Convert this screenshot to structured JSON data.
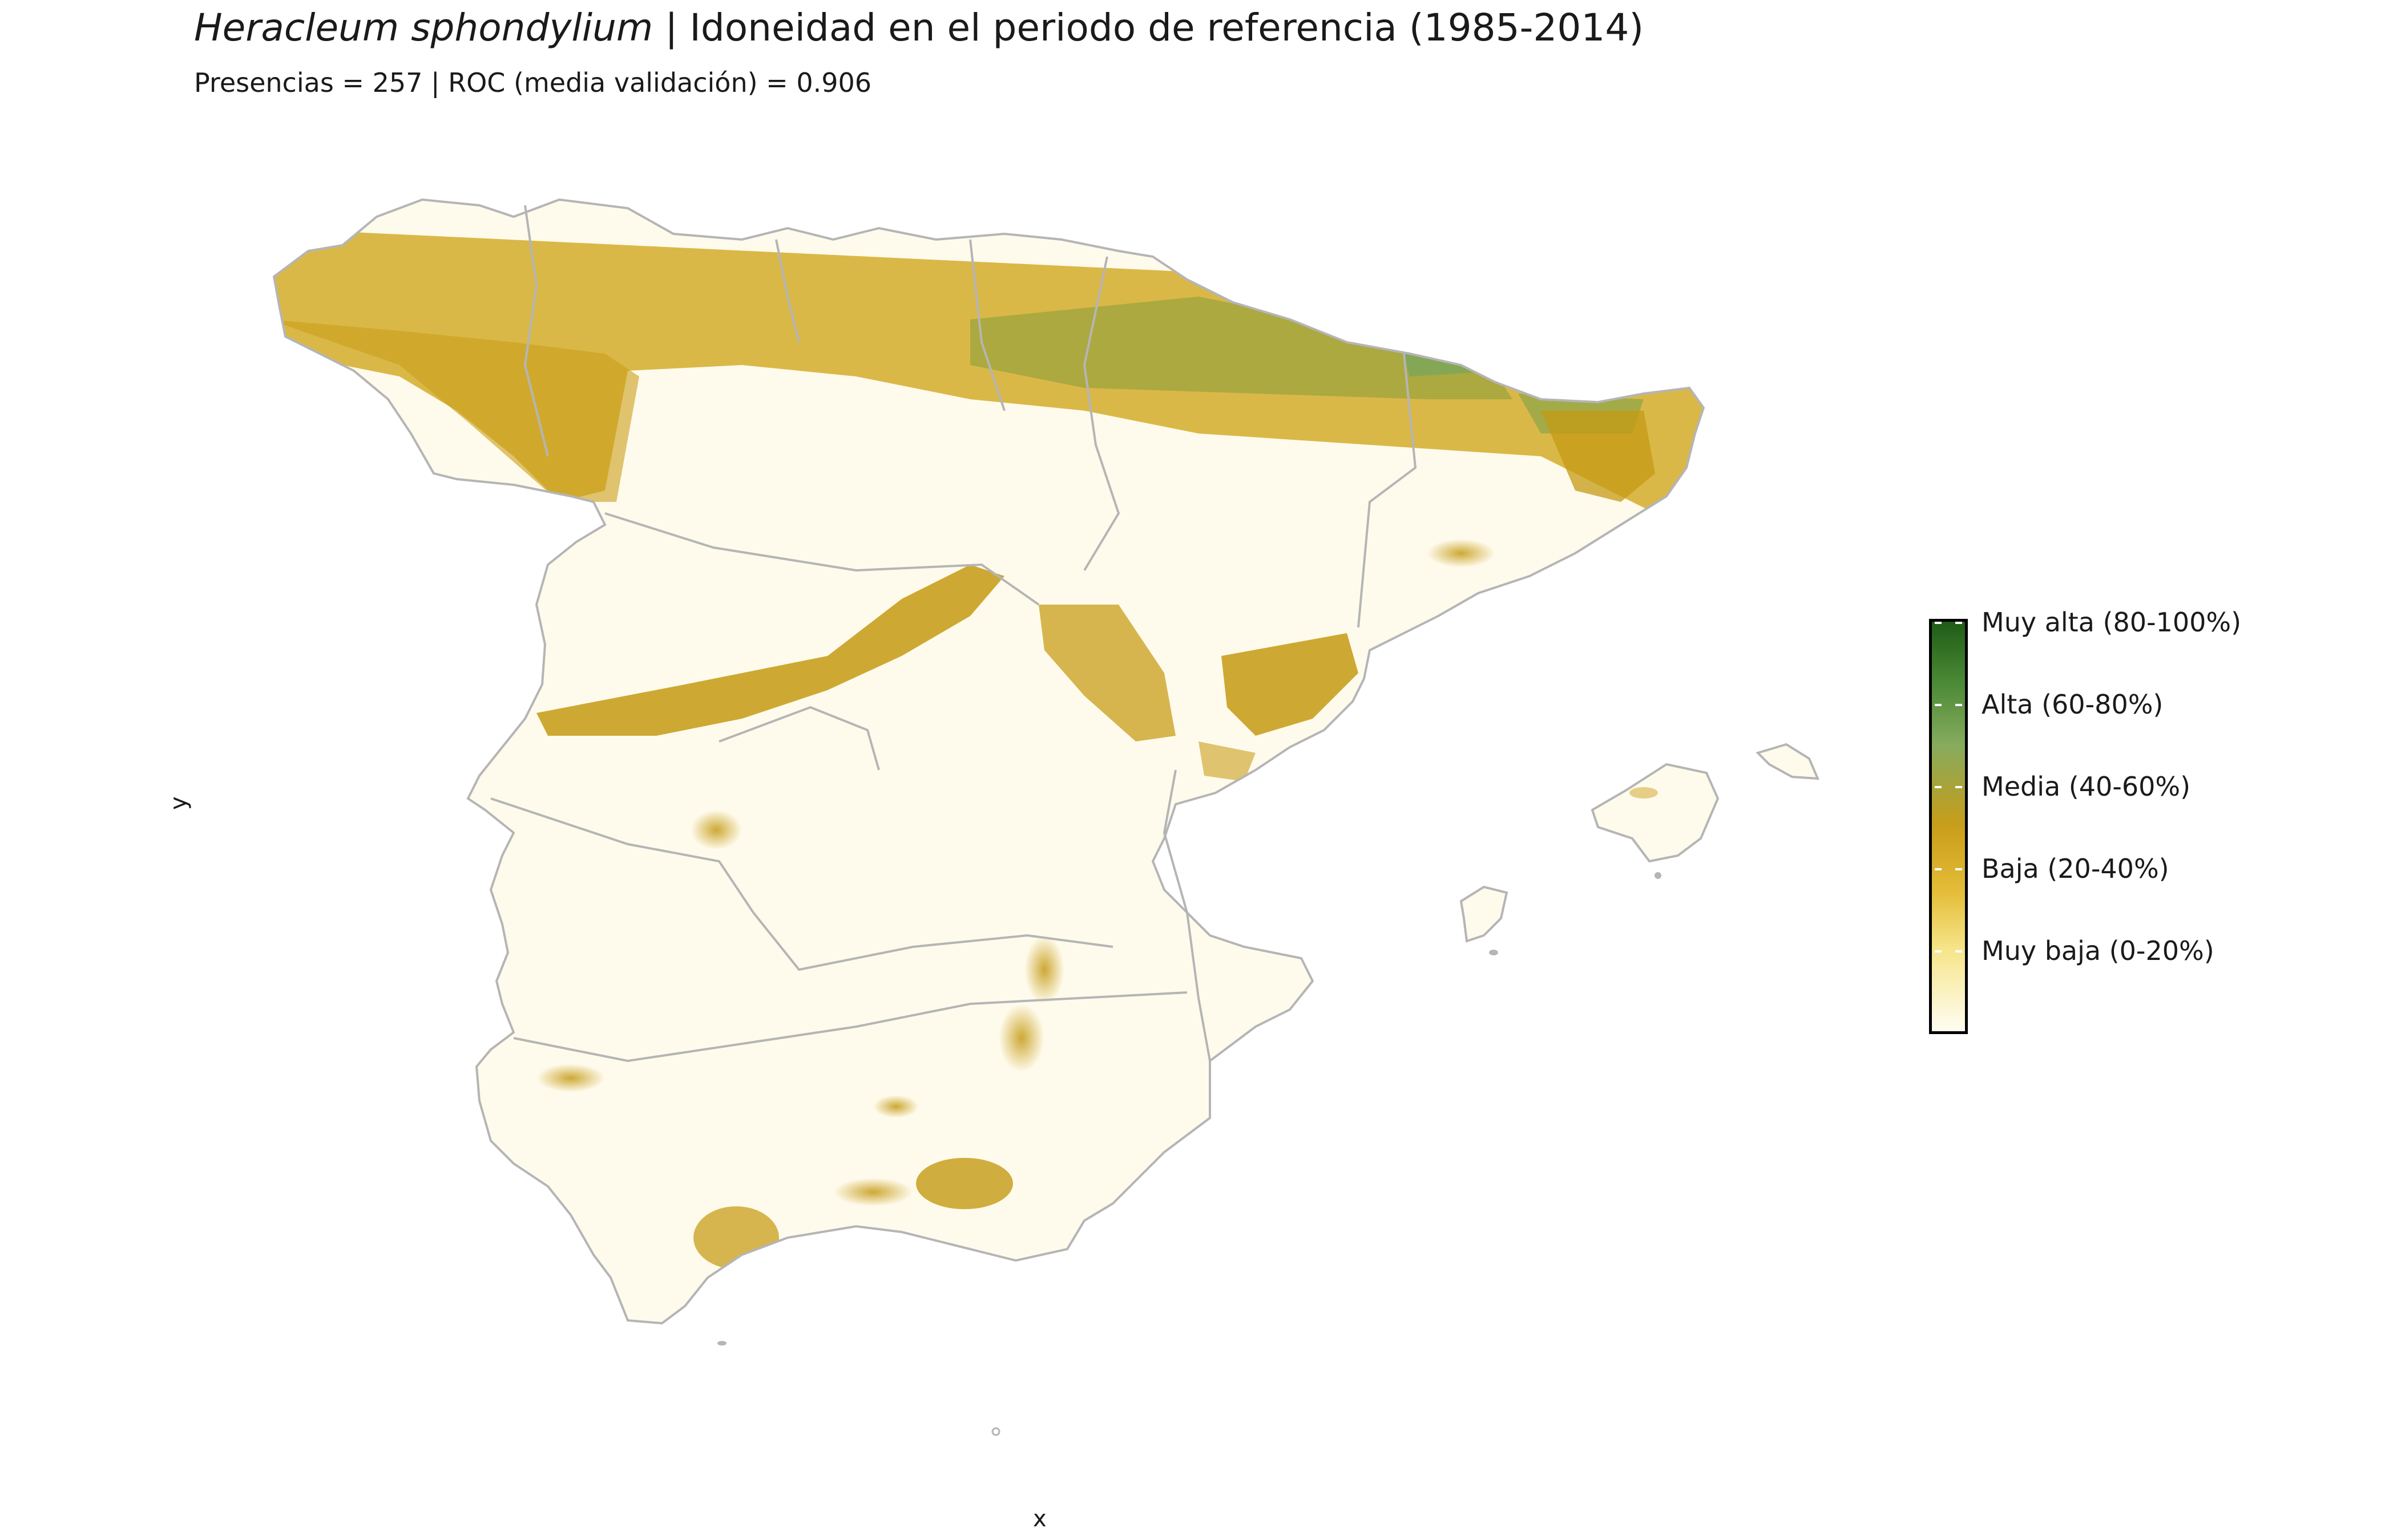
{
  "title": {
    "species": "Heracleum sphondylium",
    "text": " | Idoneidad en el periodo de referencia (1985-2014)"
  },
  "subtitle": "Presencias = 257  |  ROC (media validación) = 0.906",
  "axes": {
    "x_label": "x",
    "y_label": "y"
  },
  "legend": {
    "items": [
      {
        "label": "Muy alta (80-100%)",
        "level": 1.0
      },
      {
        "label": "Alta (60-80%)",
        "level": 0.8
      },
      {
        "label": "Media (40-60%)",
        "level": 0.6
      },
      {
        "label": "Baja (20-40%)",
        "level": 0.4
      },
      {
        "label": "Muy baja (0-20%)",
        "level": 0.2
      }
    ],
    "colors": {
      "muy_baja": "#fffdf2",
      "baja": "#e4bd39",
      "media": "#c99e1a",
      "alta": "#86ab5e",
      "muy_alta": "#1e5c16"
    }
  },
  "map": {
    "region": "Iberian Peninsula (Spain) and Balearic Islands",
    "border_color": "#b5b5b5",
    "high_suitability_area": "Cantabrian range and Pyrenees (north)"
  }
}
